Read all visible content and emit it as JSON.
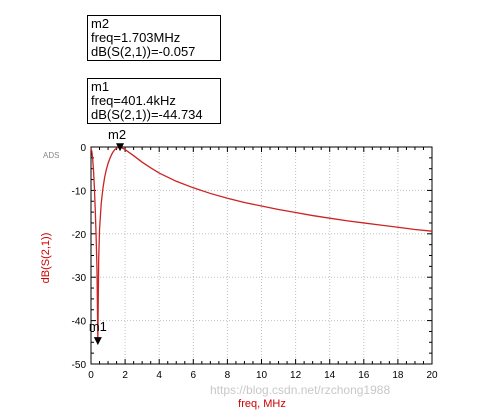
{
  "markers": [
    {
      "name": "m2",
      "freq_line": "freq=1.703MHz",
      "value_line": "dB(S(2,1))=-0.057"
    },
    {
      "name": "m1",
      "freq_line": "freq=401.4kHz",
      "value_line": "dB(S(2,1))=-44.734"
    }
  ],
  "tool_tag": "ADS",
  "watermark": "https://blog.csdn.net/rzchong1988",
  "colors": {
    "trace": "#cc2222",
    "axis_title": "#cc0000",
    "grid": "#c0c0c0"
  },
  "chart_data": {
    "type": "line",
    "xlabel": "freq, MHz",
    "ylabel": "dB(S(2,1))",
    "xlim": [
      0,
      20
    ],
    "ylim": [
      -50,
      0
    ],
    "xticks": [
      0,
      2,
      4,
      6,
      8,
      10,
      12,
      14,
      16,
      18,
      20
    ],
    "yticks": [
      0,
      -10,
      -20,
      -30,
      -40,
      -50
    ],
    "grid": true,
    "series": [
      {
        "x": [
          0.0,
          0.05,
          0.1,
          0.15,
          0.2,
          0.25,
          0.3,
          0.35,
          0.4014,
          0.45,
          0.5,
          0.6,
          0.7,
          0.8,
          0.9,
          1.0,
          1.1,
          1.2,
          1.3,
          1.4,
          1.5,
          1.6,
          1.703,
          1.8,
          2.0,
          2.5,
          3.0,
          3.5,
          4.0,
          5.0,
          6.0,
          7.0,
          8.0,
          9.0,
          10.0,
          11.0,
          12.0,
          13.0,
          14.0,
          15.0,
          16.0,
          17.0,
          18.0,
          19.0,
          20.0
        ],
        "values": [
          -0.3,
          -1.0,
          -2.8,
          -5.5,
          -9.5,
          -14.5,
          -20.5,
          -28.0,
          -44.734,
          -26.0,
          -19.0,
          -13.0,
          -9.5,
          -7.0,
          -5.2,
          -3.8,
          -2.7,
          -1.8,
          -1.1,
          -0.6,
          -0.25,
          -0.08,
          -0.057,
          -0.15,
          -0.6,
          -2.0,
          -3.5,
          -4.8,
          -6.0,
          -7.9,
          -9.4,
          -10.7,
          -11.8,
          -12.8,
          -13.6,
          -14.4,
          -15.1,
          -15.8,
          -16.4,
          -17.0,
          -17.5,
          -18.0,
          -18.5,
          -19.0,
          -19.4
        ]
      }
    ],
    "marker_points": [
      {
        "name": "m1",
        "x": 0.4014,
        "y": -44.734,
        "label_x": 0.4014,
        "label_y": -41.5
      },
      {
        "name": "m2",
        "x": 1.703,
        "y": -0.057,
        "label_x": 1.703,
        "label_y": 0.5
      }
    ]
  }
}
